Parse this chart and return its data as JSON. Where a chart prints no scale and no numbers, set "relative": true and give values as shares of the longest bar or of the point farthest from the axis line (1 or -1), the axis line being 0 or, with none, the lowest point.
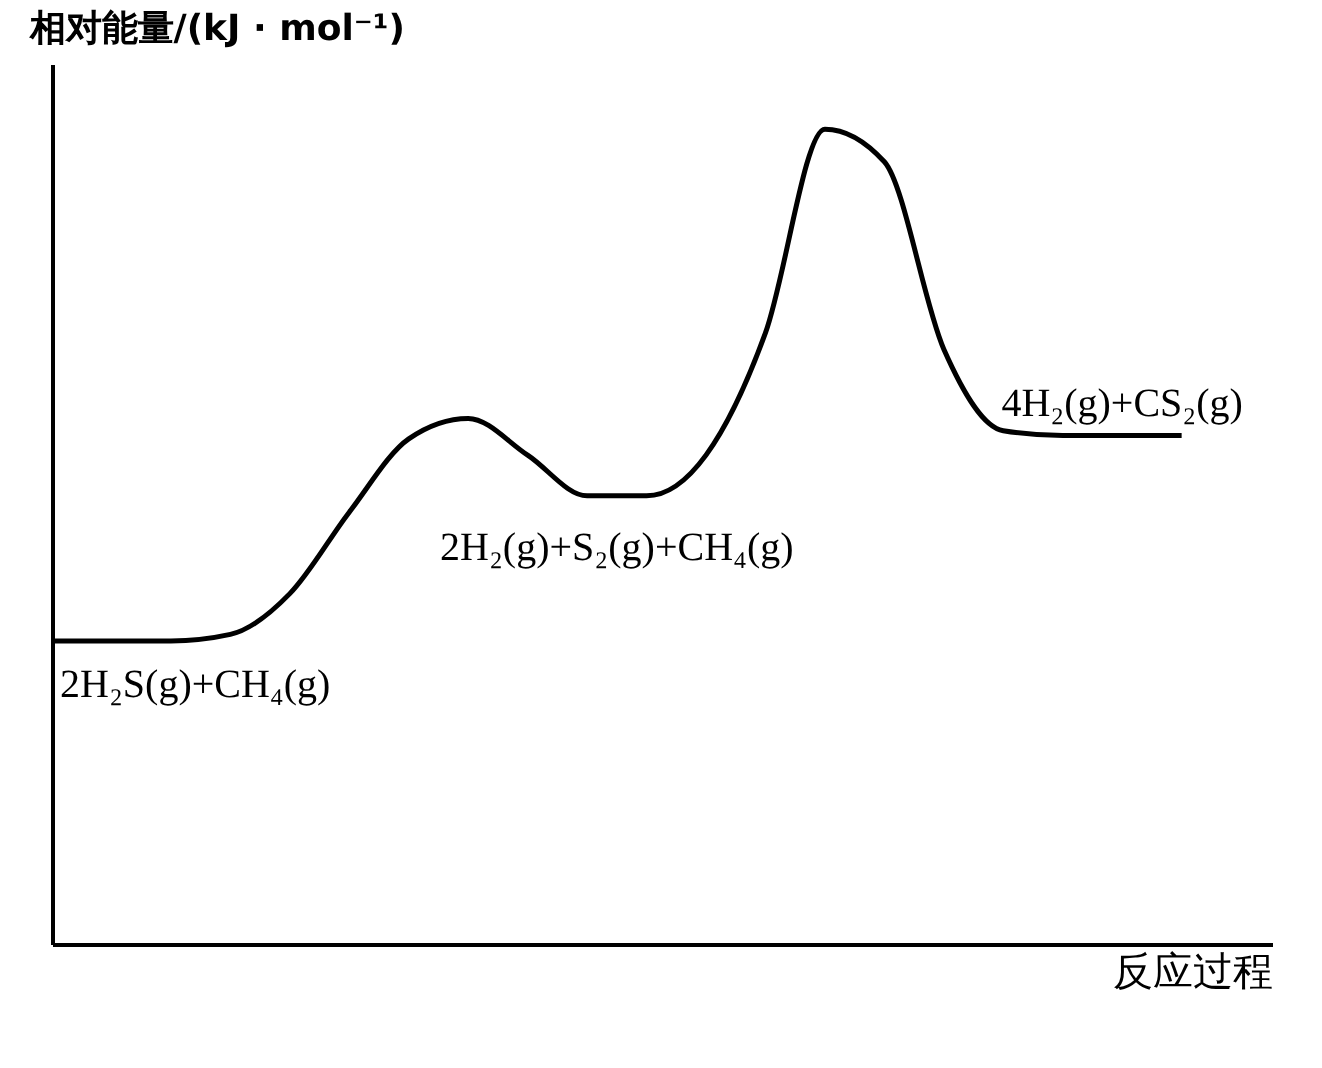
{
  "chart_data": {
    "type": "line",
    "relative": true,
    "ylabel": "相对能量/(kJ · mol⁻¹)",
    "xlabel": "反应过程",
    "categories": [
      null,
      null,
      null,
      null,
      null,
      null,
      null,
      null,
      null,
      null,
      null,
      null,
      null,
      null,
      null,
      null,
      null,
      null,
      null,
      null
    ],
    "series": [
      {
        "color": "#000000",
        "values": [
          0.372,
          0.372,
          0.372,
          0.38,
          0.43,
          0.53,
          0.62,
          0.645,
          0.6,
          0.55,
          0.55,
          0.6,
          0.75,
          1,
          0.96,
          0.73,
          0.63,
          0.624,
          0.624,
          0.624
        ]
      }
    ],
    "annotations": [
      {
        "text": "2H₂S(g)+CH₄(g)",
        "y": 0.372
      },
      {
        "text": "2H₂(g)+S₂(g)+CH₄(g)",
        "y": 0.55
      },
      {
        "text": "4H₂(g)+CS₂(g)",
        "y": 0.624
      }
    ],
    "grid": false,
    "marker": "none",
    "line_style": "solid"
  }
}
